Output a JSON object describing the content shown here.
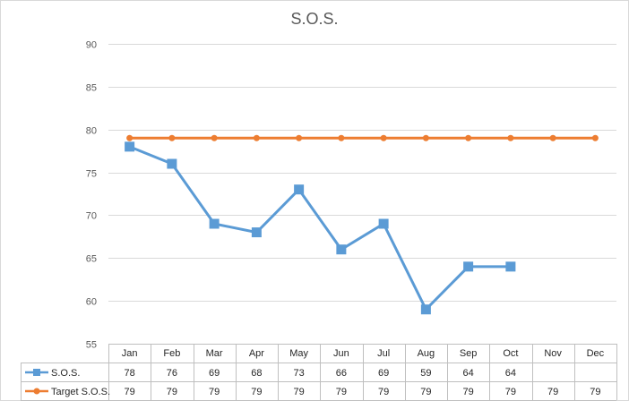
{
  "chart_data": {
    "type": "line",
    "title": "S.O.S.",
    "categories": [
      "Jan",
      "Feb",
      "Mar",
      "Apr",
      "May",
      "Jun",
      "Jul",
      "Aug",
      "Sep",
      "Oct",
      "Nov",
      "Dec"
    ],
    "series": [
      {
        "name": "S.O.S.",
        "values": [
          78,
          76,
          69,
          68,
          73,
          66,
          69,
          59,
          64,
          64,
          null,
          null
        ],
        "color": "#5b9bd5",
        "marker": "square"
      },
      {
        "name": "Target S.O.S.",
        "values": [
          79,
          79,
          79,
          79,
          79,
          79,
          79,
          79,
          79,
          79,
          79,
          79
        ],
        "color": "#ed7d31",
        "marker": "circle"
      }
    ],
    "yticks": [
      55,
      60,
      65,
      70,
      75,
      80,
      85,
      90
    ],
    "ylim": [
      55,
      90
    ],
    "grid": true,
    "legend": "data-table",
    "data_table": true
  }
}
